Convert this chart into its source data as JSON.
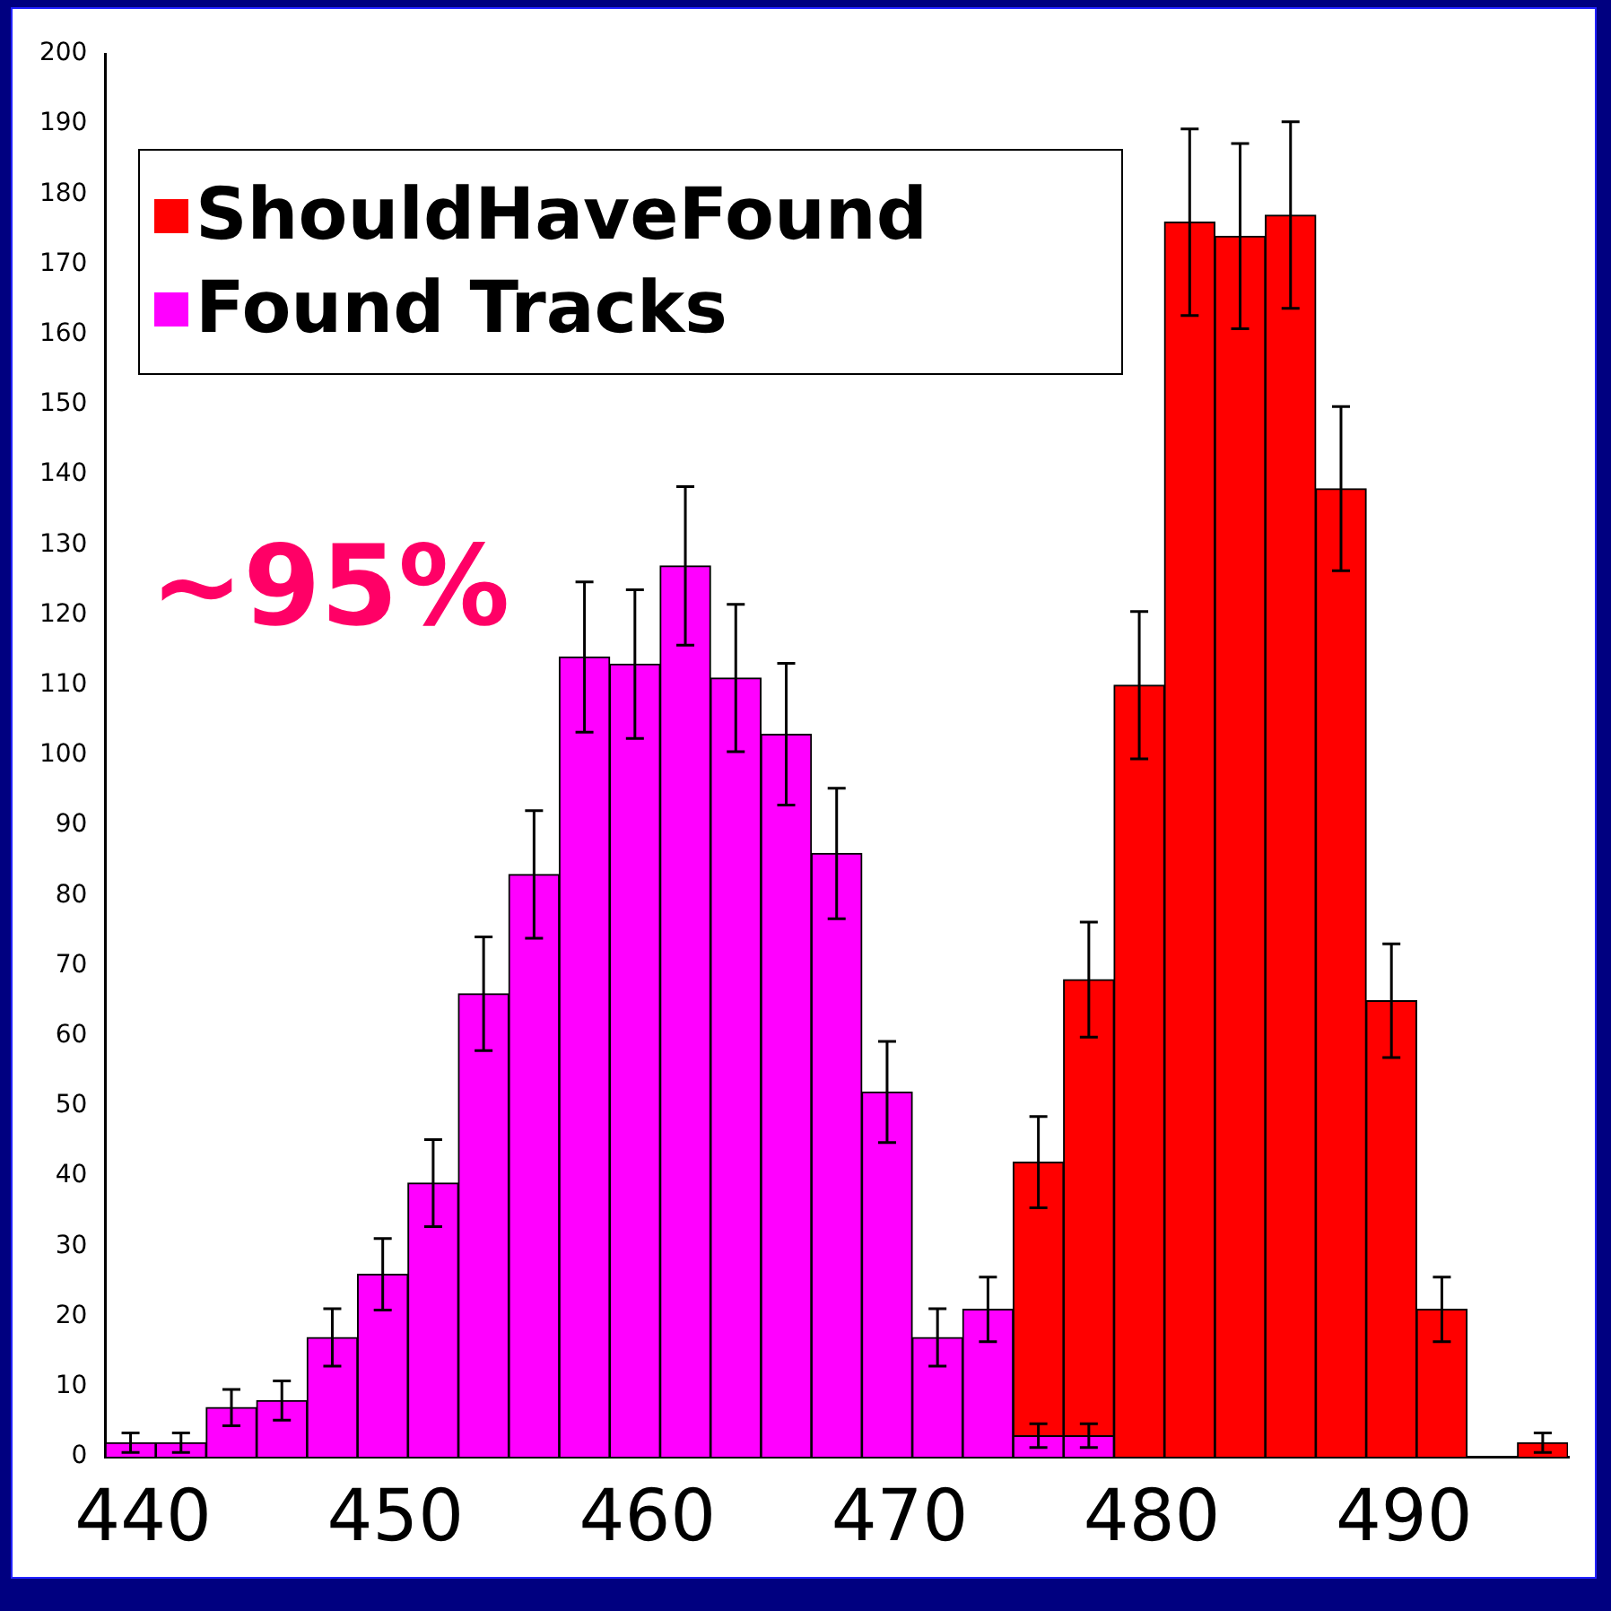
{
  "chart_data": {
    "type": "histogram",
    "bins": [
      438.5,
      440.5,
      442.5,
      444.5,
      446.5,
      448.5,
      450.5,
      452.5,
      454.5,
      456.5,
      458.5,
      460.5,
      462.5,
      464.5,
      466.5,
      468.5,
      470.5,
      472.5,
      474.5,
      476.5,
      478.5,
      480.5,
      482.5,
      484.5,
      486.5,
      488.5,
      490.5,
      492.5,
      494.5,
      496.5
    ],
    "series": [
      {
        "name": "ShouldHaveFound",
        "color": "#ff0000",
        "values": [
          null,
          null,
          null,
          null,
          null,
          null,
          null,
          null,
          null,
          null,
          null,
          null,
          null,
          null,
          null,
          null,
          null,
          null,
          42,
          68,
          110,
          176,
          174,
          177,
          138,
          65,
          21,
          0,
          2
        ],
        "errors": [
          null,
          null,
          null,
          null,
          null,
          null,
          null,
          null,
          null,
          null,
          null,
          null,
          null,
          null,
          null,
          null,
          null,
          null,
          6.5,
          8.2,
          10.5,
          13.3,
          13.2,
          13.3,
          11.7,
          8.1,
          4.6,
          null,
          1.4
        ]
      },
      {
        "name": "Found Tracks",
        "color": "#ff00ff",
        "values": [
          2,
          2,
          7,
          8,
          17,
          26,
          39,
          66,
          83,
          114,
          113,
          127,
          111,
          103,
          86,
          52,
          17,
          21,
          3,
          3,
          null,
          null,
          null,
          null,
          null,
          null,
          null,
          null,
          null
        ],
        "errors": [
          1.4,
          1.4,
          2.6,
          2.8,
          4.1,
          5.1,
          6.2,
          8.1,
          9.1,
          10.7,
          10.6,
          11.3,
          10.5,
          10.1,
          9.3,
          7.2,
          4.1,
          4.6,
          1.7,
          1.7,
          null,
          null,
          null,
          null,
          null,
          null,
          null,
          null,
          null
        ]
      }
    ],
    "xlim": [
      438.5,
      496.5
    ],
    "xticks": [
      440,
      450,
      460,
      470,
      480,
      490
    ],
    "ylim": [
      0,
      200
    ],
    "yticks": [
      0,
      10,
      20,
      30,
      40,
      50,
      60,
      70,
      80,
      90,
      100,
      110,
      120,
      130,
      140,
      150,
      160,
      170,
      180,
      190,
      200
    ],
    "legend": "top left",
    "annotations": [
      "~95%"
    ]
  }
}
